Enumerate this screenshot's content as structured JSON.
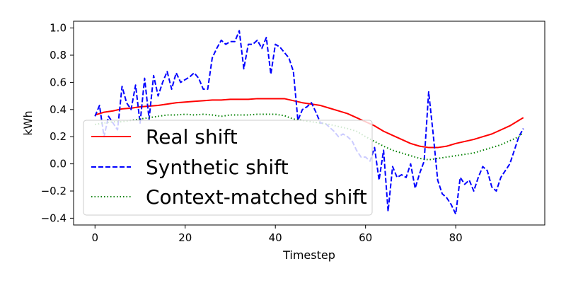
{
  "chart_data": {
    "type": "line",
    "title": "",
    "xlabel": "Timestep",
    "ylabel": "kWh",
    "xlim": [
      -4.75,
      99.75
    ],
    "ylim": [
      -0.45,
      1.05
    ],
    "xticks": [
      0,
      20,
      40,
      60,
      80
    ],
    "yticks": [
      -0.4,
      -0.2,
      0.0,
      0.2,
      0.4,
      0.6,
      0.8,
      1.0
    ],
    "ytick_labels": [
      "−0.4",
      "−0.2",
      "0.0",
      "0.2",
      "0.4",
      "0.6",
      "0.8",
      "1.0"
    ],
    "grid": false,
    "legend_position": "lower-left",
    "series": [
      {
        "name": "Real shift",
        "color": "#ff0000",
        "style": "solid",
        "x": [
          0,
          2,
          4,
          6,
          8,
          10,
          12,
          14,
          16,
          18,
          20,
          22,
          24,
          26,
          28,
          30,
          32,
          34,
          36,
          38,
          40,
          42,
          44,
          46,
          48,
          50,
          52,
          54,
          56,
          58,
          60,
          62,
          64,
          66,
          68,
          70,
          72,
          74,
          76,
          78,
          80,
          82,
          84,
          86,
          88,
          90,
          92,
          94,
          95
        ],
        "y": [
          0.36,
          0.38,
          0.39,
          0.405,
          0.41,
          0.42,
          0.425,
          0.43,
          0.44,
          0.45,
          0.455,
          0.46,
          0.465,
          0.47,
          0.47,
          0.475,
          0.475,
          0.475,
          0.48,
          0.48,
          0.48,
          0.48,
          0.465,
          0.45,
          0.44,
          0.43,
          0.41,
          0.39,
          0.37,
          0.34,
          0.31,
          0.28,
          0.24,
          0.21,
          0.18,
          0.15,
          0.13,
          0.12,
          0.12,
          0.13,
          0.15,
          0.165,
          0.18,
          0.2,
          0.22,
          0.25,
          0.28,
          0.32,
          0.34
        ]
      },
      {
        "name": "Synthetic shift",
        "color": "#0000ff",
        "style": "dashed",
        "x": [
          0,
          1,
          2,
          3,
          4,
          5,
          6,
          7,
          8,
          9,
          10,
          11,
          12,
          13,
          14,
          15,
          16,
          17,
          18,
          19,
          20,
          21,
          22,
          23,
          24,
          25,
          26,
          27,
          28,
          29,
          30,
          31,
          32,
          33,
          34,
          35,
          36,
          37,
          38,
          39,
          40,
          41,
          42,
          43,
          44,
          45,
          46,
          47,
          48,
          49,
          50,
          51,
          52,
          53,
          54,
          55,
          56,
          57,
          58,
          59,
          60,
          61,
          62,
          63,
          64,
          65,
          66,
          67,
          68,
          69,
          70,
          71,
          72,
          73,
          74,
          75,
          76,
          77,
          78,
          79,
          80,
          81,
          82,
          83,
          84,
          85,
          86,
          87,
          88,
          89,
          90,
          91,
          92,
          93,
          94,
          95
        ],
        "y": [
          0.35,
          0.43,
          0.2,
          0.35,
          0.3,
          0.25,
          0.57,
          0.45,
          0.4,
          0.58,
          0.3,
          0.63,
          0.33,
          0.65,
          0.5,
          0.6,
          0.68,
          0.55,
          0.67,
          0.6,
          0.62,
          0.64,
          0.67,
          0.63,
          0.55,
          0.55,
          0.78,
          0.85,
          0.91,
          0.88,
          0.9,
          0.9,
          0.98,
          0.7,
          0.88,
          0.88,
          0.91,
          0.85,
          0.93,
          0.66,
          0.88,
          0.86,
          0.82,
          0.78,
          0.68,
          0.32,
          0.4,
          0.42,
          0.45,
          0.38,
          0.3,
          0.3,
          0.27,
          0.24,
          0.2,
          0.22,
          0.2,
          0.17,
          0.1,
          0.05,
          0.05,
          0.02,
          0.12,
          -0.12,
          0.1,
          -0.35,
          -0.02,
          -0.1,
          -0.08,
          -0.1,
          0.0,
          -0.18,
          -0.07,
          0.02,
          0.53,
          0.22,
          -0.12,
          -0.22,
          -0.25,
          -0.3,
          -0.37,
          -0.1,
          -0.15,
          -0.12,
          -0.2,
          -0.1,
          -0.02,
          -0.05,
          -0.17,
          -0.2,
          -0.1,
          -0.05,
          0.0,
          0.1,
          0.2,
          0.26
        ]
      },
      {
        "name": "Context-matched shift",
        "color": "#008000",
        "style": "dotted",
        "x": [
          0,
          2,
          4,
          6,
          8,
          10,
          12,
          14,
          16,
          18,
          20,
          22,
          24,
          26,
          28,
          30,
          32,
          34,
          36,
          38,
          40,
          42,
          44,
          46,
          48,
          50,
          52,
          54,
          56,
          58,
          60,
          62,
          64,
          66,
          68,
          70,
          72,
          74,
          76,
          78,
          80,
          82,
          84,
          86,
          88,
          90,
          92,
          94,
          95
        ],
        "y": [
          0.29,
          0.3,
          0.31,
          0.31,
          0.32,
          0.33,
          0.34,
          0.35,
          0.36,
          0.36,
          0.365,
          0.36,
          0.365,
          0.36,
          0.35,
          0.36,
          0.36,
          0.36,
          0.365,
          0.365,
          0.365,
          0.355,
          0.33,
          0.32,
          0.31,
          0.3,
          0.29,
          0.275,
          0.26,
          0.24,
          0.2,
          0.165,
          0.13,
          0.1,
          0.08,
          0.06,
          0.04,
          0.03,
          0.04,
          0.05,
          0.06,
          0.07,
          0.08,
          0.1,
          0.12,
          0.14,
          0.17,
          0.2,
          0.23
        ]
      }
    ]
  }
}
